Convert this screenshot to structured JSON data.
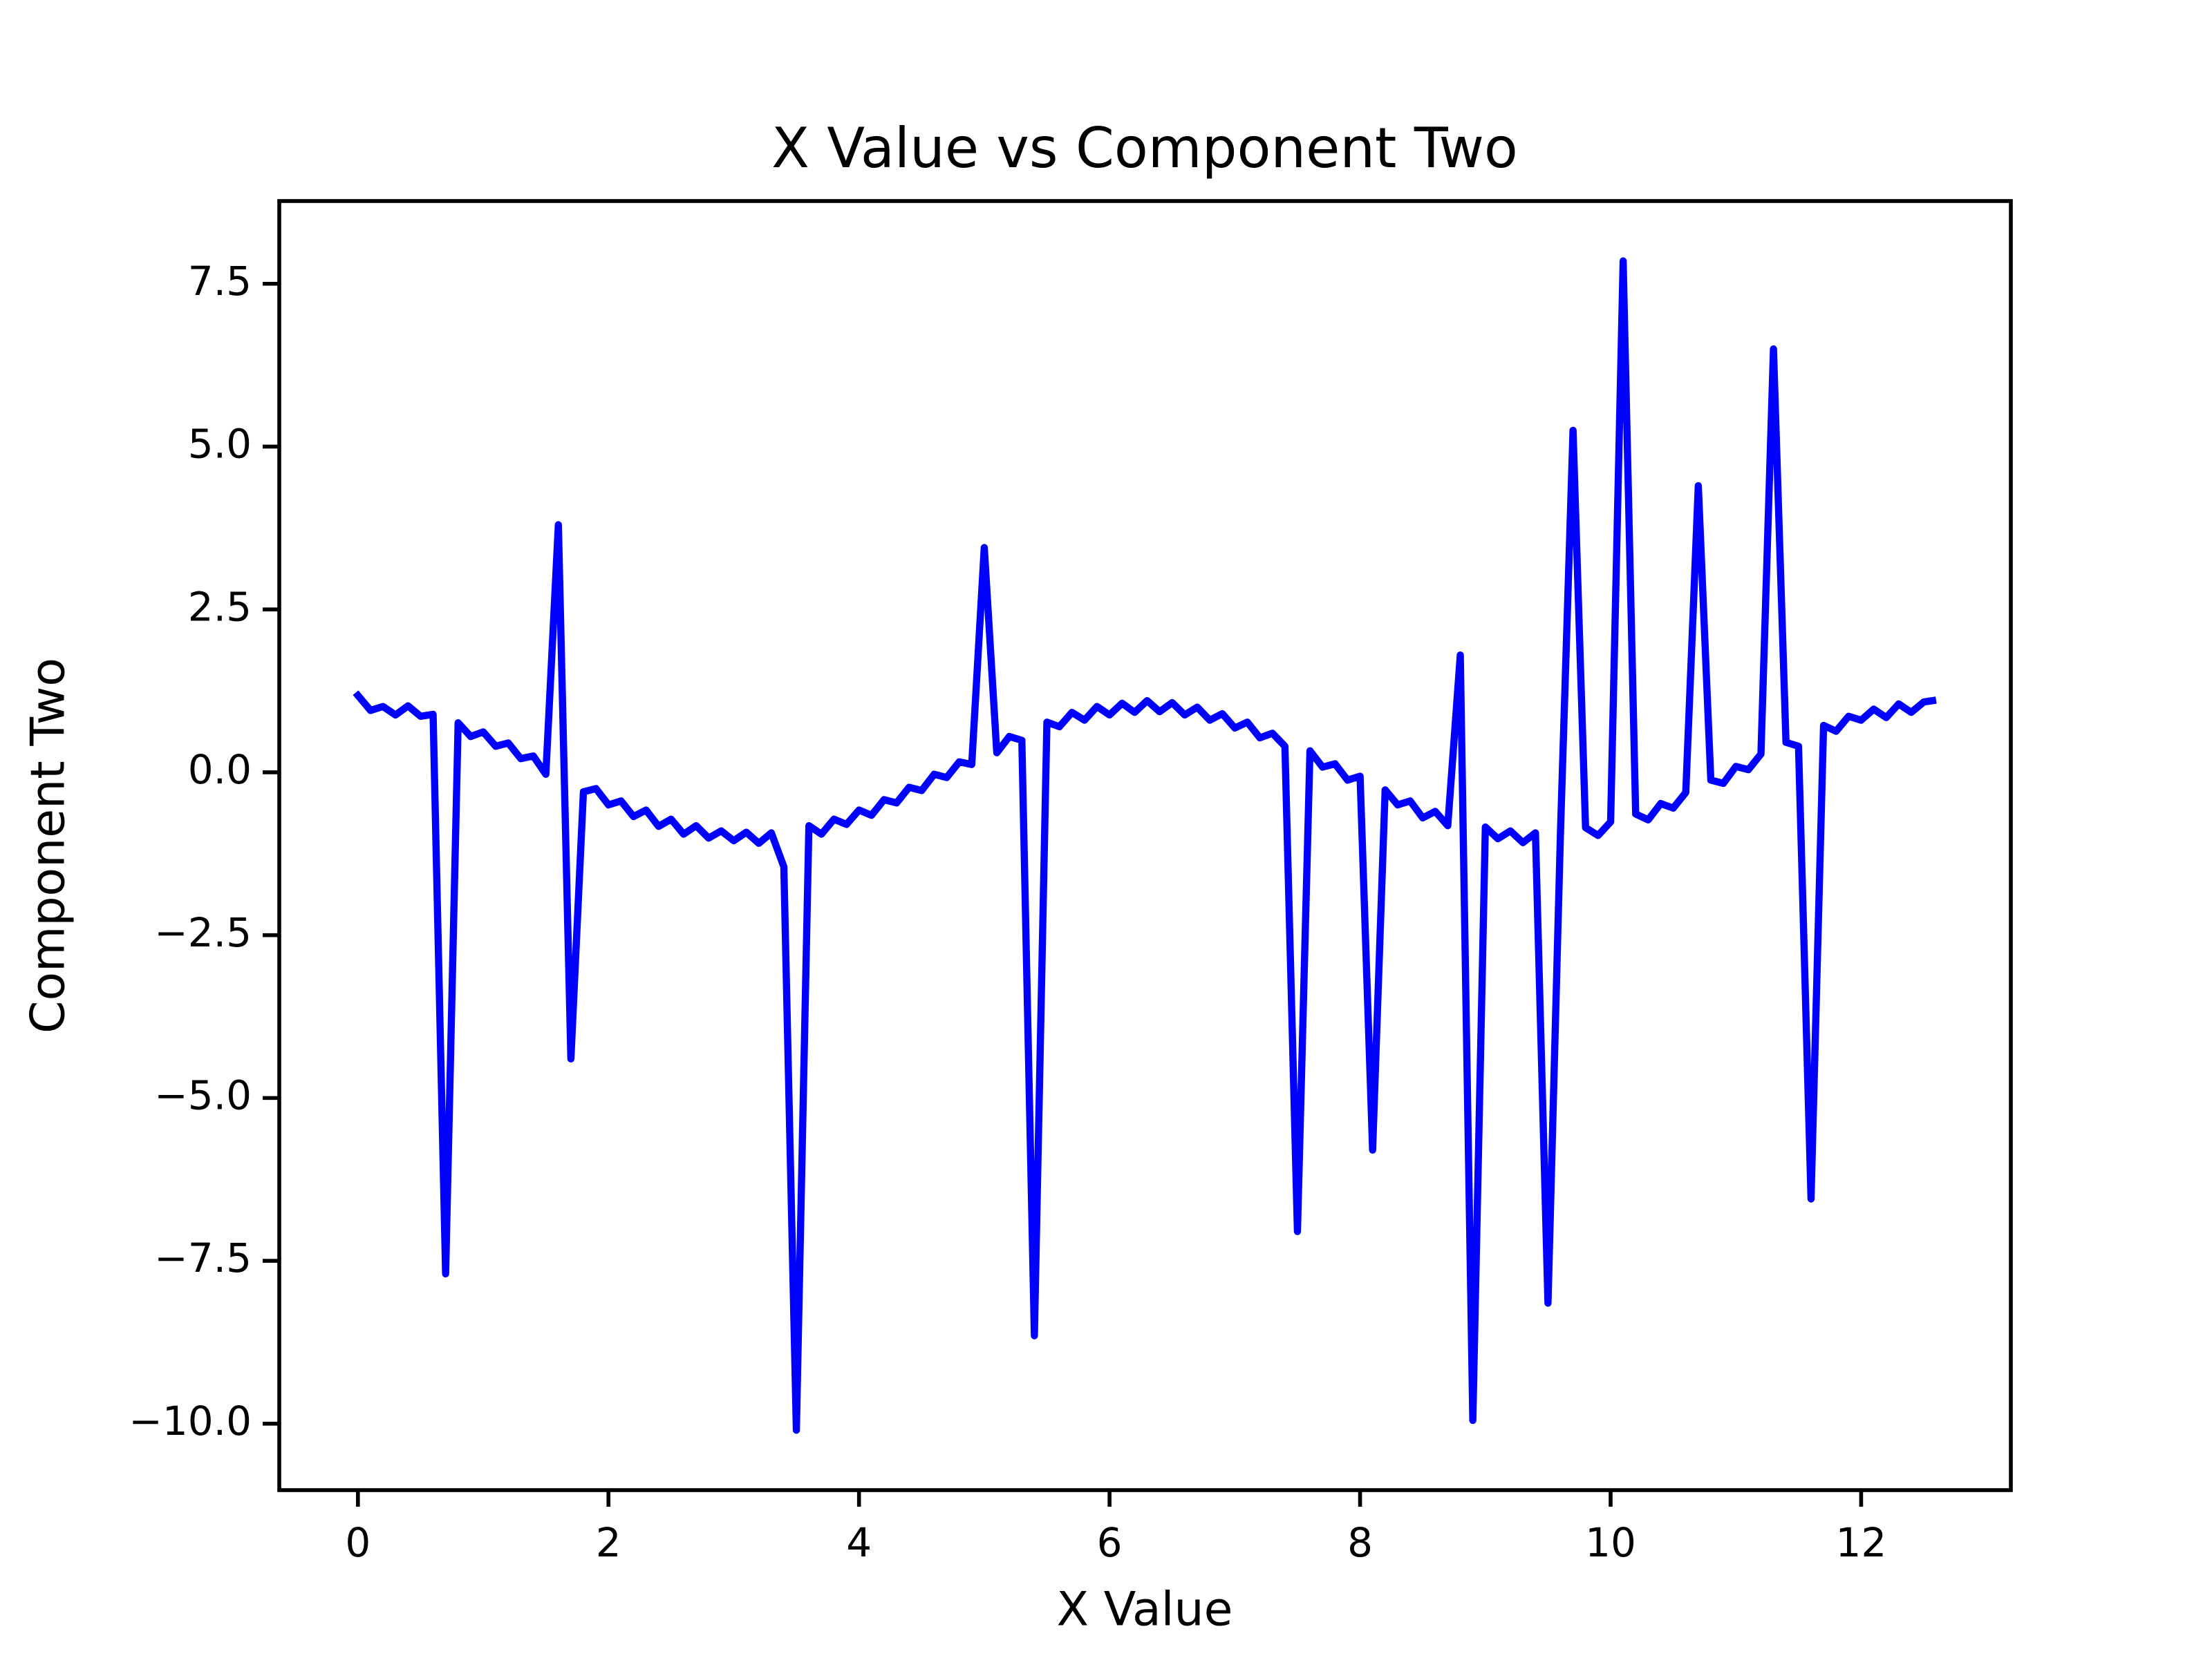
{
  "chart_data": {
    "type": "line",
    "title": "X Value vs Component Two",
    "x_label": "X Value",
    "y_label": "Component Two",
    "color": "#0000ff",
    "x": [
      0,
      0.1,
      0.2,
      0.3,
      0.4,
      0.5,
      0.6,
      0.7,
      0.8,
      0.9,
      1.0,
      1.1,
      1.2,
      1.3,
      1.4,
      1.5,
      1.6,
      1.7,
      1.8,
      1.9,
      2.0,
      2.1,
      2.2,
      2.3,
      2.4,
      2.5,
      2.6,
      2.7,
      2.8,
      2.9,
      3.0,
      3.1,
      3.2,
      3.3,
      3.4,
      3.5,
      3.6,
      3.7,
      3.8,
      3.9,
      4.0,
      4.1,
      4.2,
      4.3,
      4.4,
      4.5,
      4.6,
      4.7,
      4.8,
      4.9,
      5.0,
      5.1,
      5.2,
      5.3,
      5.4,
      5.5,
      5.6,
      5.7,
      5.8,
      5.9,
      6.0,
      6.1,
      6.2,
      6.3,
      6.4,
      6.5,
      6.6,
      6.7,
      6.8,
      6.9,
      7.0,
      7.1,
      7.2,
      7.3,
      7.4,
      7.5,
      7.6,
      7.7,
      7.8,
      7.9,
      8.0,
      8.1,
      8.2,
      8.3,
      8.4,
      8.5,
      8.6,
      8.7,
      8.8,
      8.9,
      9.0,
      9.1,
      9.2,
      9.3,
      9.4,
      9.5,
      9.6,
      9.7,
      9.8,
      9.9,
      10.0,
      10.1,
      10.2,
      10.3,
      10.4,
      10.5,
      10.6,
      10.7,
      10.8,
      10.9,
      11.0,
      11.1,
      11.2,
      11.3,
      11.4,
      11.5,
      11.6,
      11.7,
      11.8,
      11.9,
      12.0,
      12.1,
      12.2,
      12.3,
      12.4,
      12.5,
      12.57
    ],
    "values": [
      1.18,
      0.95,
      1.01,
      0.88,
      1.02,
      0.86,
      0.89,
      -7.7,
      0.76,
      0.55,
      0.62,
      0.4,
      0.45,
      0.21,
      0.25,
      -0.03,
      3.8,
      -4.4,
      -0.3,
      -0.25,
      -0.5,
      -0.44,
      -0.68,
      -0.58,
      -0.83,
      -0.72,
      -0.95,
      -0.82,
      -1.01,
      -0.9,
      -1.05,
      -0.92,
      -1.09,
      -0.93,
      -1.45,
      -10.1,
      -0.82,
      -0.95,
      -0.72,
      -0.8,
      -0.58,
      -0.66,
      -0.42,
      -0.47,
      -0.23,
      -0.28,
      -0.03,
      -0.08,
      0.16,
      0.12,
      3.45,
      0.3,
      0.55,
      0.49,
      -8.65,
      0.77,
      0.7,
      0.92,
      0.8,
      1.01,
      0.88,
      1.06,
      0.92,
      1.1,
      0.93,
      1.07,
      0.88,
      1.0,
      0.8,
      0.9,
      0.68,
      0.77,
      0.53,
      0.6,
      0.4,
      -7.05,
      0.33,
      0.08,
      0.13,
      -0.12,
      -0.06,
      -5.8,
      -0.27,
      -0.5,
      -0.44,
      -0.7,
      -0.6,
      -0.82,
      1.8,
      -9.95,
      -0.84,
      -1.02,
      -0.9,
      -1.08,
      -0.93,
      -8.15,
      -0.9,
      5.25,
      -0.85,
      -0.97,
      -0.76,
      7.85,
      -0.64,
      -0.73,
      -0.48,
      -0.55,
      -0.31,
      4.4,
      -0.12,
      -0.17,
      0.09,
      0.04,
      0.28,
      6.5,
      0.46,
      0.4,
      -6.55,
      0.72,
      0.63,
      0.86,
      0.8,
      0.97,
      0.84,
      1.05,
      0.92,
      1.08,
      1.1
    ],
    "xlim": [
      -0.628,
      13.195
    ],
    "ylim": [
      -11.02,
      8.77
    ],
    "xticks": [
      0,
      2,
      4,
      6,
      8,
      10,
      12
    ],
    "yticks": [
      {
        "value": -10,
        "label": "−10.0"
      },
      {
        "value": -7.5,
        "label": "−7.5"
      },
      {
        "value": -5,
        "label": "−5.0"
      },
      {
        "value": -2.5,
        "label": "−2.5"
      },
      {
        "value": 0,
        "label": "0.0"
      },
      {
        "value": 2.5,
        "label": "2.5"
      },
      {
        "value": 5,
        "label": "5.0"
      },
      {
        "value": 7.5,
        "label": "7.5"
      }
    ],
    "grid": false
  }
}
